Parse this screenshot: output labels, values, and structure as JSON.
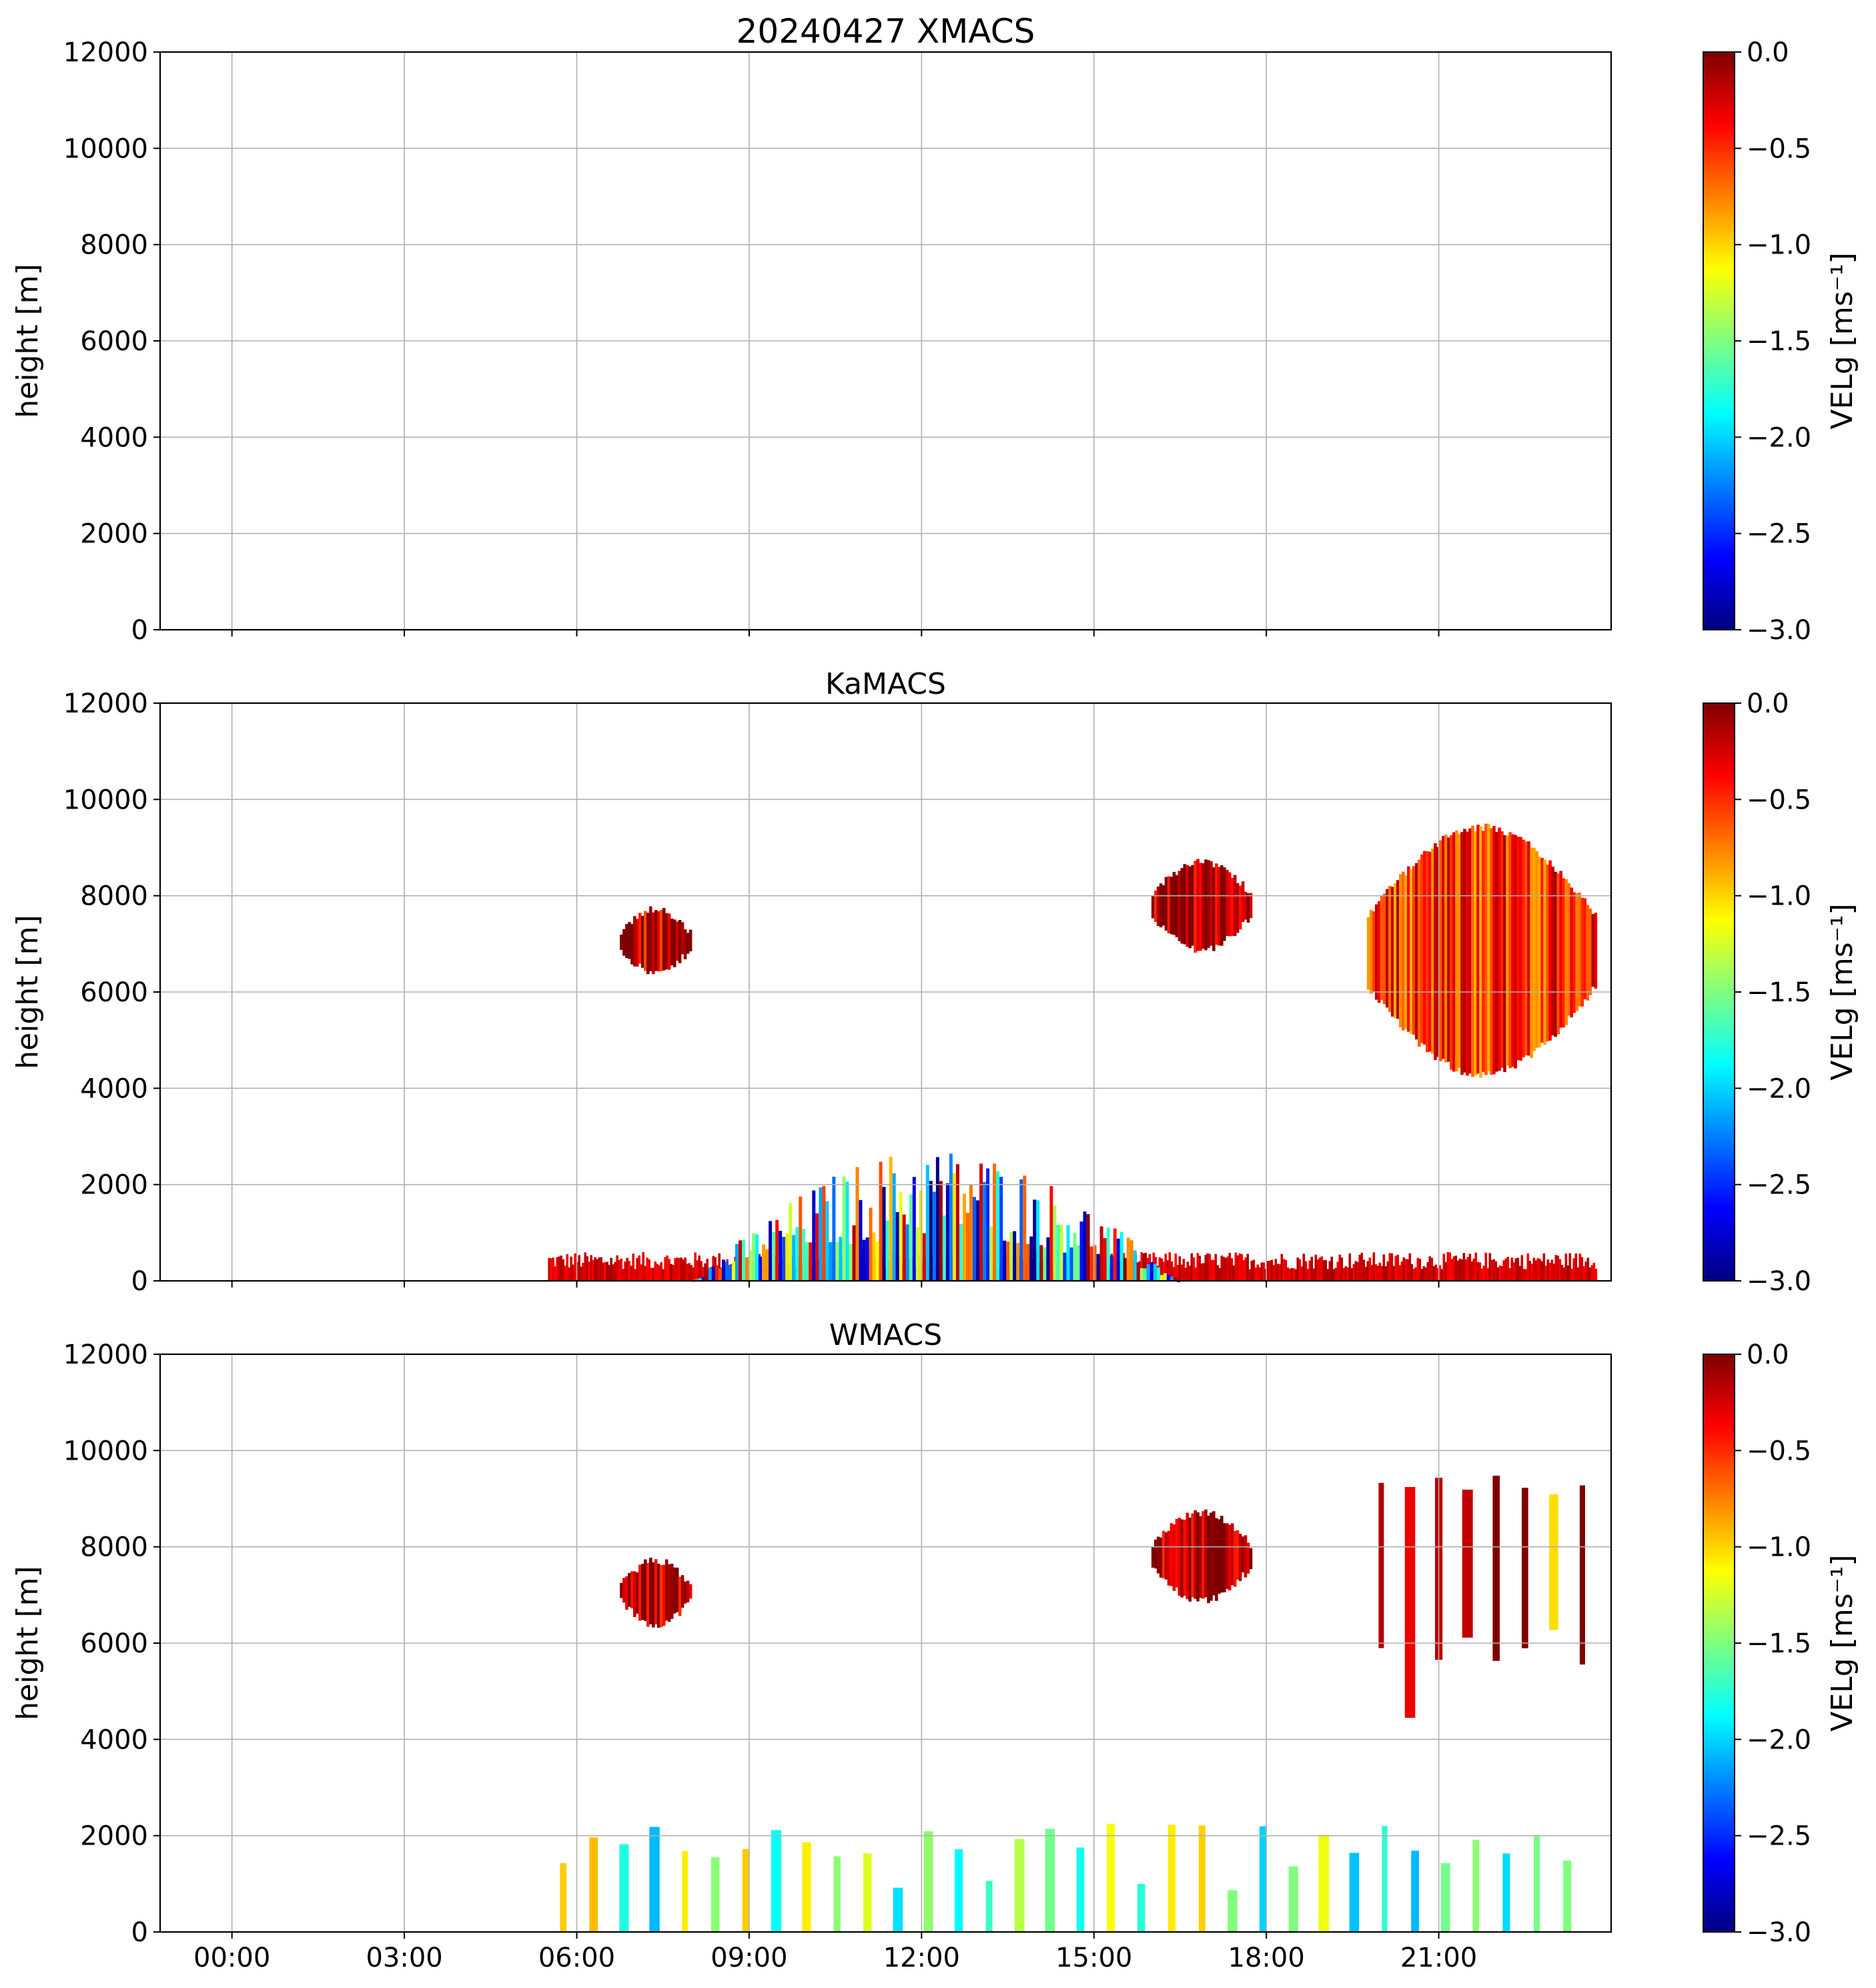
{
  "colormap": {
    "name": "jet",
    "stops": [
      "#00007f",
      "#0000ff",
      "#007fff",
      "#00ffff",
      "#7fff7f",
      "#ffff00",
      "#ff7f00",
      "#ff0000",
      "#7f0000"
    ]
  },
  "chart_data": [
    {
      "type": "heatmap",
      "title": "20240427 XMACS",
      "ylabel": "height [m]",
      "xlim": [
        "2024-04-26T22:45",
        "2024-04-28T00:00"
      ],
      "ylim": [
        0,
        12000
      ],
      "xticks": [],
      "yticks": [
        "0",
        "2000",
        "4000",
        "6000",
        "8000",
        "10000",
        "12000"
      ],
      "grid": true,
      "colorbar": {
        "label": "VELg [ms⁻¹]",
        "range": [
          -3.0,
          0.0
        ],
        "ticks": [
          "−3.0",
          "−2.5",
          "−2.0",
          "−1.5",
          "−1.0",
          "−0.5",
          "0.0"
        ]
      },
      "regions": []
    },
    {
      "type": "heatmap",
      "title": "KaMACS",
      "ylabel": "height [m]",
      "xlim": [
        "2024-04-26T22:45",
        "2024-04-28T00:00"
      ],
      "ylim": [
        0,
        12000
      ],
      "xticks": [],
      "yticks": [
        "0",
        "2000",
        "4000",
        "6000",
        "8000",
        "10000",
        "12000"
      ],
      "grid": true,
      "colorbar": {
        "label": "VELg [ms⁻¹]",
        "range": [
          -3.0,
          0.0
        ],
        "ticks": [
          "−3.0",
          "−2.5",
          "−2.0",
          "−1.5",
          "−1.0",
          "−0.5",
          "0.0"
        ]
      },
      "regions": [
        {
          "kind": "boundary layer echo",
          "time_start": "05:30",
          "time_end": "23:45",
          "height_base": 0,
          "height_top": 600,
          "velocity": -0.1
        },
        {
          "kind": "convective cells",
          "time_start": "08:00",
          "time_end": "16:30",
          "height_base": 0,
          "height_top": 2800,
          "velocity": -1.5
        },
        {
          "kind": "cirrus",
          "time_start": "06:45",
          "time_end": "08:00",
          "height_base": 6300,
          "height_top": 7800,
          "velocity": -0.2
        },
        {
          "kind": "cirrus",
          "time_start": "16:00",
          "time_end": "17:45",
          "height_base": 6800,
          "height_top": 8800,
          "velocity": -0.1
        },
        {
          "kind": "cirrus",
          "time_start": "19:45",
          "time_end": "23:45",
          "height_base": 4200,
          "height_top": 9500,
          "velocity": -0.5
        }
      ]
    },
    {
      "type": "heatmap",
      "title": "WMACS",
      "ylabel": "height [m]",
      "xlim": [
        "2024-04-26T22:45",
        "2024-04-28T00:00"
      ],
      "ylim": [
        0,
        12000
      ],
      "xticks": [
        "00:00",
        "03:00",
        "06:00",
        "09:00",
        "12:00",
        "15:00",
        "18:00",
        "21:00"
      ],
      "yticks": [
        "0",
        "2000",
        "4000",
        "6000",
        "8000",
        "10000",
        "12000"
      ],
      "grid": true,
      "colorbar": {
        "label": "VELg [ms⁻¹]",
        "range": [
          -3.0,
          0.0
        ],
        "ticks": [
          "−3.0",
          "−2.5",
          "−2.0",
          "−1.5",
          "−1.0",
          "−0.5",
          "0.0"
        ]
      },
      "regions": [
        {
          "kind": "periodic low-level echo columns",
          "time_start": "05:30",
          "time_end": "23:30",
          "height_base": 0,
          "height_top": 2400,
          "velocity": -1.5
        },
        {
          "kind": "cirrus",
          "time_start": "06:45",
          "time_end": "08:00",
          "height_base": 6300,
          "height_top": 7800,
          "velocity": -0.2
        },
        {
          "kind": "cirrus",
          "time_start": "16:00",
          "time_end": "17:45",
          "height_base": 6800,
          "height_top": 8800,
          "velocity": -0.1
        },
        {
          "kind": "periodic cirrus columns",
          "time_start": "19:45",
          "time_end": "23:45",
          "height_base": 4200,
          "height_top": 9500,
          "velocity": -0.5
        }
      ]
    }
  ]
}
